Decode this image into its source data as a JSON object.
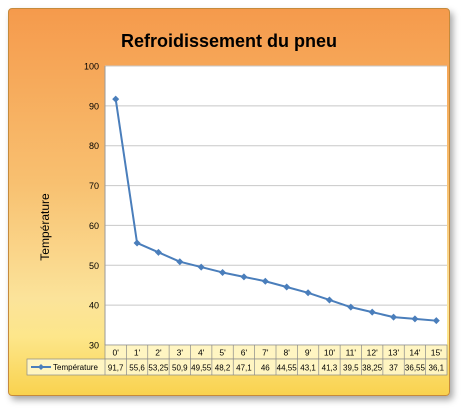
{
  "chart_data": {
    "type": "line",
    "title": "Refroidissement du pneu",
    "xlabel": "",
    "ylabel": "Température",
    "ylim": [
      30,
      100
    ],
    "yticks": [
      30,
      40,
      50,
      60,
      70,
      80,
      90,
      100
    ],
    "grid": true,
    "legend": "bottom-left (data table)",
    "categories": [
      "0'",
      "1'",
      "2'",
      "3'",
      "4'",
      "5'",
      "6'",
      "7'",
      "8'",
      "9'",
      "10'",
      "11'",
      "12'",
      "13'",
      "14'",
      "15'"
    ],
    "series": [
      {
        "name": "Température",
        "values": [
          91.7,
          55.6,
          53.25,
          50.9,
          49.55,
          48.2,
          47.1,
          46,
          44.55,
          43.1,
          41.3,
          39.5,
          38.25,
          37,
          36.55,
          36.1
        ],
        "table_labels": [
          "91,7",
          "55,6",
          "53,25",
          "50,9",
          "49,55",
          "48,2",
          "47,1",
          "46",
          "44,55",
          "43,1",
          "41,3",
          "39,5",
          "38,25",
          "37",
          "36,55",
          "36,1"
        ],
        "color": "#4a7ebb"
      }
    ]
  },
  "colors": {
    "plot_background": "#ffffff",
    "gridline": "#c8c8c8",
    "series_line": "#4a7ebb",
    "table_header": "#fff5c2",
    "table_border": "#8a8a8a"
  }
}
